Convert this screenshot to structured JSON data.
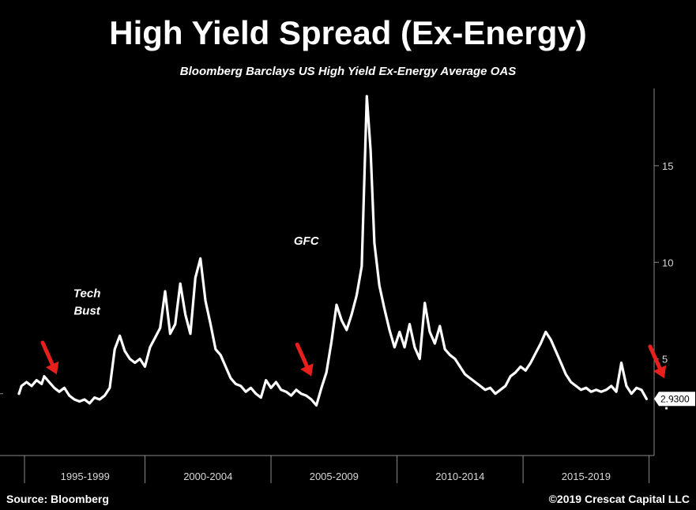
{
  "chart_data": {
    "type": "line",
    "title": "High Yield Spread (Ex-Energy)",
    "subtitle": "Bloomberg Barclays US High Yield Ex-Energy Average OAS",
    "xlabel": "",
    "ylabel": "",
    "x_range": [
      1995.0,
      2020.2
    ],
    "ylim": [
      0.0,
      19.0
    ],
    "y_ticks": [
      "5",
      "10",
      "15"
    ],
    "y_tick_values": [
      5,
      10,
      15
    ],
    "categories": [
      "1995-1999",
      "2000-2004",
      "2005-2009",
      "2010-2014",
      "2015-2019"
    ],
    "category_bounds": [
      1995,
      2000,
      2005,
      2010,
      2015,
      2020
    ],
    "series": [
      {
        "name": "High Yield Ex-Energy OAS",
        "color": "#ffffff",
        "x": [
          1995.0,
          1995.1,
          1995.3,
          1995.5,
          1995.7,
          1995.9,
          1996.0,
          1996.2,
          1996.4,
          1996.6,
          1996.8,
          1997.0,
          1997.2,
          1997.4,
          1997.6,
          1997.8,
          1998.0,
          1998.2,
          1998.4,
          1998.6,
          1998.8,
          1999.0,
          1999.2,
          1999.4,
          1999.6,
          1999.8,
          2000.0,
          2000.2,
          2000.4,
          2000.6,
          2000.8,
          2001.0,
          2001.2,
          2001.4,
          2001.6,
          2001.8,
          2002.0,
          2002.2,
          2002.4,
          2002.6,
          2002.8,
          2003.0,
          2003.2,
          2003.4,
          2003.6,
          2003.8,
          2004.0,
          2004.2,
          2004.4,
          2004.6,
          2004.8,
          2005.0,
          2005.2,
          2005.4,
          2005.6,
          2005.8,
          2006.0,
          2006.2,
          2006.4,
          2006.6,
          2006.8,
          2007.0,
          2007.2,
          2007.4,
          2007.6,
          2007.8,
          2008.0,
          2008.2,
          2008.4,
          2008.6,
          2008.8,
          2008.95,
          2009.1,
          2009.3,
          2009.5,
          2009.7,
          2009.9,
          2010.1,
          2010.3,
          2010.5,
          2010.7,
          2010.9,
          2011.1,
          2011.3,
          2011.5,
          2011.7,
          2011.9,
          2012.1,
          2012.3,
          2012.5,
          2012.7,
          2012.9,
          2013.1,
          2013.3,
          2013.5,
          2013.7,
          2013.9,
          2014.1,
          2014.3,
          2014.5,
          2014.7,
          2014.9,
          2015.1,
          2015.3,
          2015.5,
          2015.7,
          2015.9,
          2016.1,
          2016.3,
          2016.5,
          2016.7,
          2016.9,
          2017.1,
          2017.3,
          2017.5,
          2017.7,
          2017.9,
          2018.1,
          2018.3,
          2018.5,
          2018.7,
          2018.9,
          2019.1,
          2019.3,
          2019.5,
          2019.7,
          2019.9
        ],
        "values": [
          3.2,
          3.6,
          3.8,
          3.6,
          3.9,
          3.7,
          4.1,
          3.8,
          3.5,
          3.3,
          3.5,
          3.1,
          2.9,
          2.8,
          2.9,
          2.7,
          3.0,
          2.9,
          3.1,
          3.5,
          5.5,
          6.2,
          5.4,
          5.0,
          4.8,
          5.0,
          4.6,
          5.6,
          6.1,
          6.6,
          8.5,
          6.3,
          6.8,
          8.9,
          7.3,
          6.3,
          9.2,
          10.2,
          8.0,
          6.8,
          5.5,
          5.2,
          4.6,
          4.0,
          3.7,
          3.6,
          3.3,
          3.5,
          3.2,
          3.0,
          3.9,
          3.5,
          3.8,
          3.4,
          3.3,
          3.1,
          3.4,
          3.2,
          3.1,
          2.9,
          2.6,
          3.5,
          4.3,
          5.9,
          7.8,
          7.0,
          6.5,
          7.3,
          8.3,
          9.8,
          18.6,
          15.8,
          11.0,
          8.8,
          7.6,
          6.5,
          5.6,
          6.4,
          5.6,
          6.8,
          5.6,
          5.0,
          7.9,
          6.4,
          5.8,
          6.7,
          5.5,
          5.2,
          5.0,
          4.6,
          4.2,
          4.0,
          3.8,
          3.6,
          3.4,
          3.5,
          3.2,
          3.4,
          3.6,
          4.1,
          4.3,
          4.6,
          4.4,
          4.8,
          5.3,
          5.8,
          6.4,
          6.0,
          5.4,
          4.8,
          4.2,
          3.8,
          3.6,
          3.4,
          3.5,
          3.3,
          3.4,
          3.3,
          3.4,
          3.6,
          3.3,
          4.8,
          3.6,
          3.2,
          3.5,
          3.4,
          2.93
        ]
      }
    ],
    "last_value_label": "2.9300",
    "annotations": [
      {
        "id": "tech",
        "lines": [
          "Tech",
          "Bust"
        ],
        "x": 1997.7,
        "y": 8.2
      },
      {
        "id": "gfc",
        "lines": [
          "GFC"
        ],
        "x": 2006.4,
        "y": 10.9
      }
    ],
    "arrows": [
      {
        "id": "arrow-1996",
        "x": 1996.5,
        "y": 4.2
      },
      {
        "id": "arrow-2006",
        "x": 2006.6,
        "y": 4.1
      },
      {
        "id": "arrow-2019",
        "x": 2020.6,
        "y": 4.0
      }
    ],
    "question_mark": {
      "text": "?",
      "x": 2020.7,
      "y": 2.4
    }
  },
  "footer": {
    "source": "Source: Bloomberg",
    "copyright": "©2019 Crescat Capital LLC"
  },
  "colors": {
    "background": "#000000",
    "line": "#ffffff",
    "arrow": "#e8201d",
    "axis": "#8a8a8a",
    "label_box": "#ffffff"
  }
}
